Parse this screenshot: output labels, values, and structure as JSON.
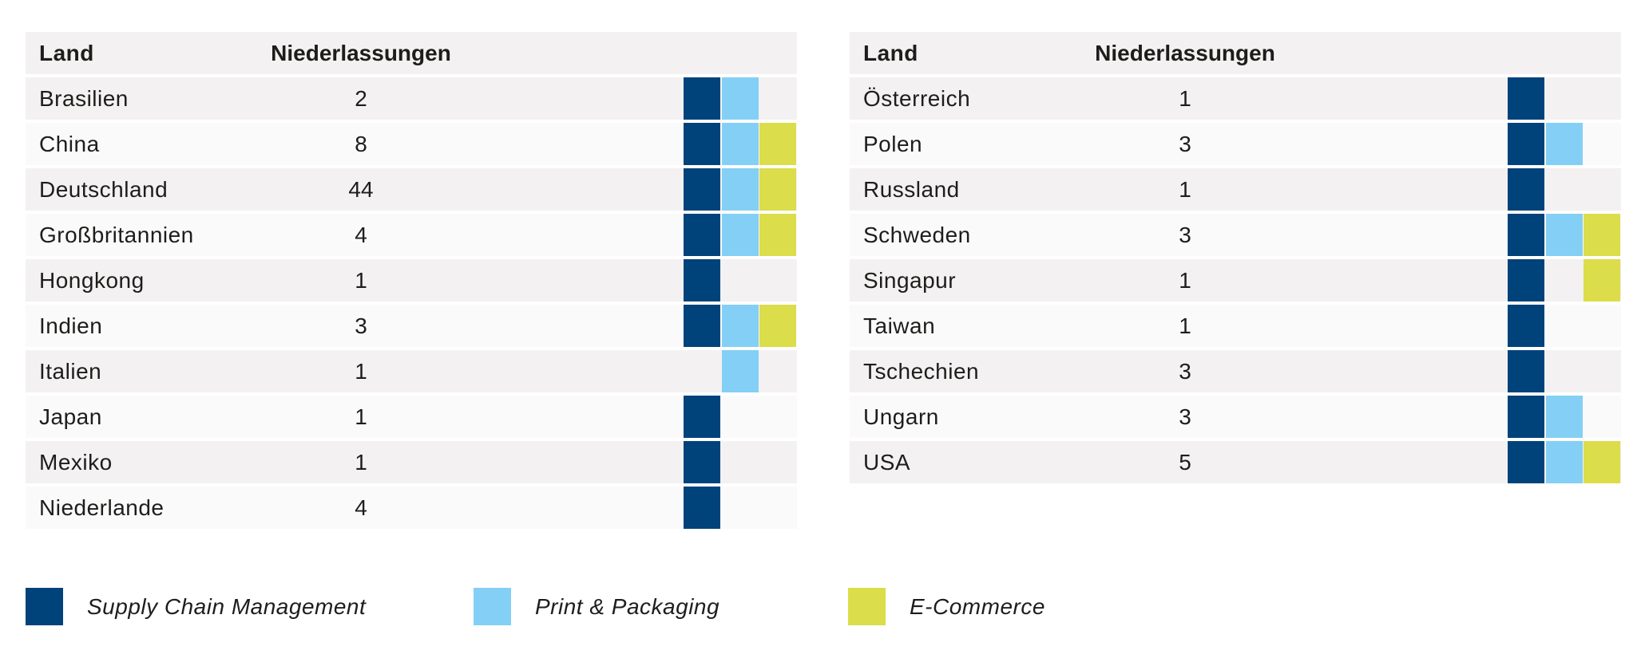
{
  "chart_data": {
    "type": "table",
    "colors": {
      "supply_chain": "#00427a",
      "print_packaging": "#84cff5",
      "ecommerce": "#dcdd4a"
    },
    "legend": [
      {
        "key": "supply_chain",
        "label": "Supply Chain Management"
      },
      {
        "key": "print_packaging",
        "label": "Print & Packaging"
      },
      {
        "key": "ecommerce",
        "label": "E-Commerce"
      }
    ],
    "tables": [
      {
        "header": {
          "land": "Land",
          "niederlassungen": "Niederlassungen"
        },
        "rows": [
          {
            "land": "Brasilien",
            "count": "2",
            "segments": [
              true,
              true,
              false
            ]
          },
          {
            "land": "China",
            "count": "8",
            "segments": [
              true,
              true,
              true
            ]
          },
          {
            "land": "Deutschland",
            "count": "44",
            "segments": [
              true,
              true,
              true
            ]
          },
          {
            "land": "Großbritannien",
            "count": "4",
            "segments": [
              true,
              true,
              true
            ]
          },
          {
            "land": "Hongkong",
            "count": "1",
            "segments": [
              true,
              false,
              false
            ]
          },
          {
            "land": "Indien",
            "count": "3",
            "segments": [
              true,
              true,
              true
            ]
          },
          {
            "land": "Italien",
            "count": "1",
            "segments": [
              false,
              true,
              false
            ]
          },
          {
            "land": "Japan",
            "count": "1",
            "segments": [
              true,
              false,
              false
            ]
          },
          {
            "land": "Mexiko",
            "count": "1",
            "segments": [
              true,
              false,
              false
            ]
          },
          {
            "land": "Niederlande",
            "count": "4",
            "segments": [
              true,
              false,
              false
            ]
          }
        ]
      },
      {
        "header": {
          "land": "Land",
          "niederlassungen": "Niederlassungen"
        },
        "rows": [
          {
            "land": "Österreich",
            "count": "1",
            "segments": [
              true,
              false,
              false
            ]
          },
          {
            "land": "Polen",
            "count": "3",
            "segments": [
              true,
              true,
              false
            ]
          },
          {
            "land": "Russland",
            "count": "1",
            "segments": [
              true,
              false,
              false
            ]
          },
          {
            "land": "Schweden",
            "count": "3",
            "segments": [
              true,
              true,
              true
            ]
          },
          {
            "land": "Singapur",
            "count": "1",
            "segments": [
              true,
              false,
              true
            ]
          },
          {
            "land": "Taiwan",
            "count": "1",
            "segments": [
              true,
              false,
              false
            ]
          },
          {
            "land": "Tschechien",
            "count": "3",
            "segments": [
              true,
              false,
              false
            ]
          },
          {
            "land": "Ungarn",
            "count": "3",
            "segments": [
              true,
              true,
              false
            ]
          },
          {
            "land": "USA",
            "count": "5",
            "segments": [
              true,
              true,
              true
            ]
          }
        ]
      }
    ]
  }
}
